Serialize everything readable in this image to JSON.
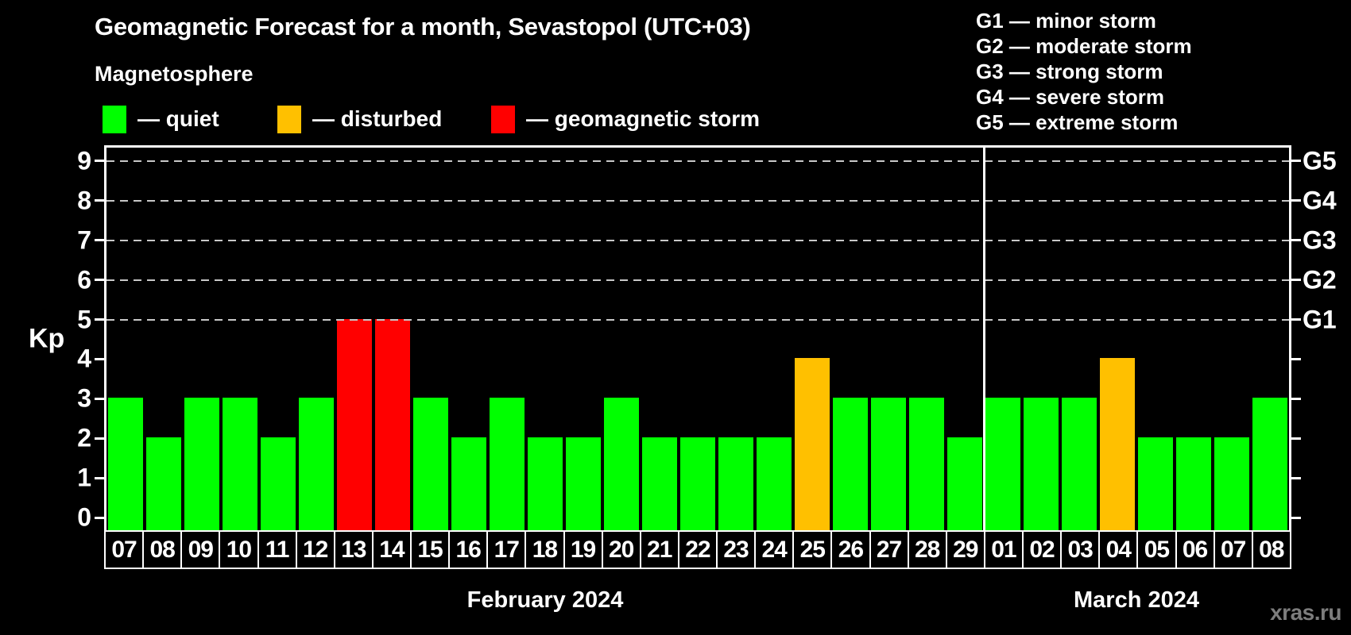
{
  "title": "Geomagnetic Forecast for a month, Sevastopol (UTC+03)",
  "subtitle": "Magnetosphere",
  "activity_legend": [
    {
      "name": "quiet-swatch",
      "label": "— quiet",
      "color": "#00ff00"
    },
    {
      "name": "disturbed-swatch",
      "label": "— disturbed",
      "color": "#ffc000"
    },
    {
      "name": "storm-swatch",
      "label": "— geomagnetic storm",
      "color": "#ff0000"
    }
  ],
  "storm_scale_legend": [
    "G1 — minor storm",
    "G2 — moderate storm",
    "G3 — strong storm",
    "G4 — severe storm",
    "G5 — extreme storm"
  ],
  "watermark": "xras.ru",
  "chart_data": {
    "type": "bar",
    "title": "Geomagnetic Forecast for a month, Sevastopol (UTC+03)",
    "ylabel": "Kp",
    "ylim": [
      0,
      9
    ],
    "yticks": [
      0,
      1,
      2,
      3,
      4,
      5,
      6,
      7,
      8,
      9
    ],
    "grid_levels": [
      5,
      6,
      7,
      8,
      9
    ],
    "grid_on": true,
    "legend_position": "top-left",
    "right_axis": [
      {
        "kp": 5,
        "label": "G1"
      },
      {
        "kp": 6,
        "label": "G2"
      },
      {
        "kp": 7,
        "label": "G3"
      },
      {
        "kp": 8,
        "label": "G4"
      },
      {
        "kp": 9,
        "label": "G5"
      }
    ],
    "status_colors": {
      "quiet": "#00ff00",
      "disturbed": "#ffc000",
      "storm": "#ff0000"
    },
    "months": [
      {
        "label": "February 2024",
        "days": [
          {
            "day": "07",
            "kp": 3,
            "status": "quiet"
          },
          {
            "day": "08",
            "kp": 2,
            "status": "quiet"
          },
          {
            "day": "09",
            "kp": 3,
            "status": "quiet"
          },
          {
            "day": "10",
            "kp": 3,
            "status": "quiet"
          },
          {
            "day": "11",
            "kp": 2,
            "status": "quiet"
          },
          {
            "day": "12",
            "kp": 3,
            "status": "quiet"
          },
          {
            "day": "13",
            "kp": 5,
            "status": "storm"
          },
          {
            "day": "14",
            "kp": 5,
            "status": "storm"
          },
          {
            "day": "15",
            "kp": 3,
            "status": "quiet"
          },
          {
            "day": "16",
            "kp": 2,
            "status": "quiet"
          },
          {
            "day": "17",
            "kp": 3,
            "status": "quiet"
          },
          {
            "day": "18",
            "kp": 2,
            "status": "quiet"
          },
          {
            "day": "19",
            "kp": 2,
            "status": "quiet"
          },
          {
            "day": "20",
            "kp": 3,
            "status": "quiet"
          },
          {
            "day": "21",
            "kp": 2,
            "status": "quiet"
          },
          {
            "day": "22",
            "kp": 2,
            "status": "quiet"
          },
          {
            "day": "23",
            "kp": 2,
            "status": "quiet"
          },
          {
            "day": "24",
            "kp": 2,
            "status": "quiet"
          },
          {
            "day": "25",
            "kp": 4,
            "status": "disturbed"
          },
          {
            "day": "26",
            "kp": 3,
            "status": "quiet"
          },
          {
            "day": "27",
            "kp": 3,
            "status": "quiet"
          },
          {
            "day": "28",
            "kp": 3,
            "status": "quiet"
          },
          {
            "day": "29",
            "kp": 2,
            "status": "quiet"
          }
        ]
      },
      {
        "label": "March 2024",
        "days": [
          {
            "day": "01",
            "kp": 3,
            "status": "quiet"
          },
          {
            "day": "02",
            "kp": 3,
            "status": "quiet"
          },
          {
            "day": "03",
            "kp": 3,
            "status": "quiet"
          },
          {
            "day": "04",
            "kp": 4,
            "status": "disturbed"
          },
          {
            "day": "05",
            "kp": 2,
            "status": "quiet"
          },
          {
            "day": "06",
            "kp": 2,
            "status": "quiet"
          },
          {
            "day": "07",
            "kp": 2,
            "status": "quiet"
          },
          {
            "day": "08",
            "kp": 3,
            "status": "quiet"
          }
        ]
      }
    ]
  }
}
